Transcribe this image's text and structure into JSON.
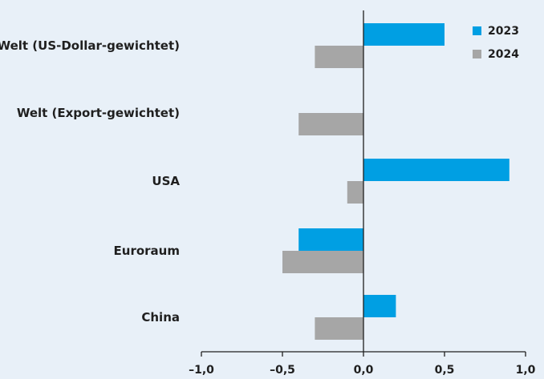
{
  "chart_data": {
    "type": "bar",
    "orientation": "horizontal",
    "categories": [
      "Welt (US-Dollar-gewichtet)",
      "Welt (Export-gewichtet)",
      "USA",
      "Euroraum",
      "China"
    ],
    "series": [
      {
        "name": "2023",
        "color": "#009fe3",
        "values": [
          0.5,
          null,
          0.9,
          -0.4,
          0.2
        ]
      },
      {
        "name": "2024",
        "color": "#a6a6a6",
        "values": [
          -0.3,
          -0.4,
          -0.1,
          -0.5,
          -0.3
        ]
      }
    ],
    "xlim": [
      -1.0,
      1.0
    ],
    "xticks": [
      -1.0,
      -0.5,
      0.0,
      0.5,
      1.0
    ],
    "xtick_labels": [
      "–1,0",
      "–0,5",
      "0,0",
      "0,5",
      "1,0"
    ],
    "title": "",
    "xlabel": "",
    "ylabel": "",
    "legend_position": "top-right",
    "grid": false,
    "background_color": "#e8f0f8"
  }
}
